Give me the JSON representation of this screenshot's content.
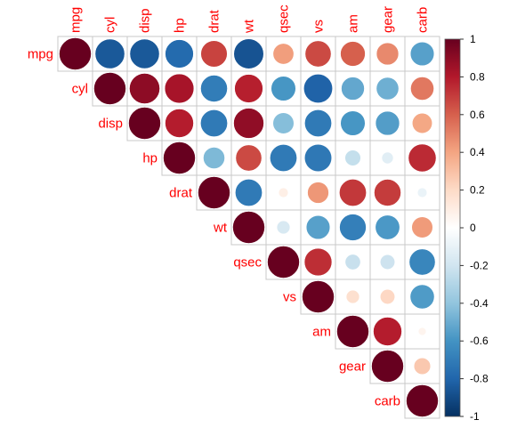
{
  "chart_data": {
    "type": "heatmap",
    "subtype": "correlation-matrix-upper-circles",
    "variables": [
      "mpg",
      "cyl",
      "disp",
      "hp",
      "drat",
      "wt",
      "qsec",
      "vs",
      "am",
      "gear",
      "carb"
    ],
    "matrix": [
      [
        1.0,
        -0.85,
        -0.85,
        -0.78,
        0.68,
        -0.87,
        0.42,
        0.66,
        0.6,
        0.48,
        -0.55
      ],
      [
        -0.85,
        1.0,
        0.9,
        0.83,
        -0.7,
        0.78,
        -0.59,
        -0.81,
        -0.52,
        -0.49,
        0.53
      ],
      [
        -0.85,
        0.9,
        1.0,
        0.79,
        -0.71,
        0.89,
        -0.43,
        -0.71,
        -0.59,
        -0.56,
        0.39
      ],
      [
        -0.78,
        0.83,
        0.79,
        1.0,
        -0.45,
        0.66,
        -0.71,
        -0.72,
        -0.24,
        -0.13,
        0.75
      ],
      [
        0.68,
        -0.7,
        -0.71,
        -0.45,
        1.0,
        -0.71,
        0.09,
        0.44,
        0.71,
        0.7,
        -0.09
      ],
      [
        -0.87,
        0.78,
        0.89,
        0.66,
        -0.71,
        1.0,
        -0.17,
        -0.55,
        -0.69,
        -0.58,
        0.43
      ],
      [
        0.42,
        -0.59,
        -0.43,
        -0.71,
        0.09,
        -0.17,
        1.0,
        0.74,
        -0.23,
        -0.21,
        -0.66
      ],
      [
        0.66,
        -0.81,
        -0.71,
        -0.72,
        0.44,
        -0.55,
        0.74,
        1.0,
        0.17,
        0.21,
        -0.57
      ],
      [
        0.6,
        -0.52,
        -0.59,
        -0.24,
        0.71,
        -0.69,
        -0.23,
        0.17,
        1.0,
        0.79,
        0.06
      ],
      [
        0.48,
        -0.49,
        -0.56,
        -0.13,
        0.7,
        -0.58,
        -0.21,
        0.21,
        0.79,
        1.0,
        0.27
      ],
      [
        -0.55,
        0.53,
        0.39,
        0.75,
        -0.09,
        0.43,
        -0.66,
        -0.57,
        0.06,
        0.27,
        1.0
      ]
    ],
    "triangle": "upper",
    "colorbar": {
      "range": [
        -1,
        1
      ],
      "ticks": [
        "1",
        "0.8",
        "0.6",
        "0.4",
        "0.2",
        "0",
        "-0.2",
        "-0.4",
        "-0.6",
        "-0.8",
        "-1"
      ],
      "colors": [
        "#67001F",
        "#B2182B",
        "#D6604D",
        "#F4A582",
        "#FDDBC7",
        "#FFFFFF",
        "#D1E5F0",
        "#92C5DE",
        "#4393C3",
        "#2166AC",
        "#053061"
      ]
    },
    "label_color": "#FF0000",
    "grid": true,
    "legend": "right"
  }
}
